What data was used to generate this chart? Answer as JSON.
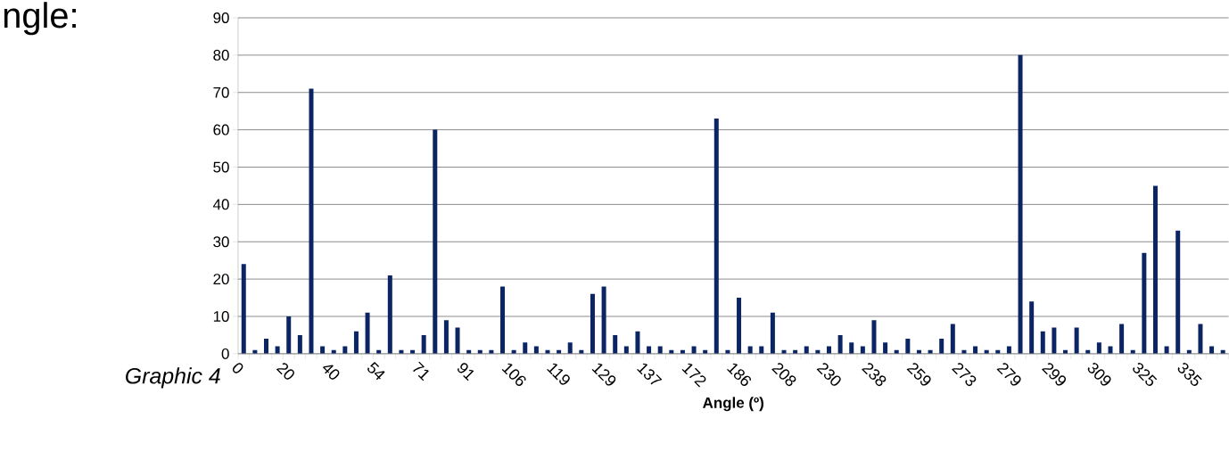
{
  "chart_data": {
    "type": "bar",
    "xlabel": "Angle (º)",
    "annotations": [
      "ngle:",
      "Graphic 4"
    ],
    "categories": [
      "0",
      null,
      null,
      null,
      "20",
      null,
      null,
      null,
      "40",
      null,
      null,
      null,
      "54",
      null,
      null,
      null,
      "71",
      null,
      null,
      null,
      "91",
      null,
      null,
      null,
      "106",
      null,
      null,
      null,
      "119",
      null,
      null,
      null,
      "129",
      null,
      null,
      null,
      "137",
      null,
      null,
      null,
      "172",
      null,
      null,
      null,
      "186",
      null,
      null,
      null,
      "208",
      null,
      null,
      null,
      "230",
      null,
      null,
      null,
      "238",
      null,
      null,
      null,
      "259",
      null,
      null,
      null,
      "273",
      null,
      null,
      null,
      "279",
      null,
      null,
      null,
      "299",
      null,
      null,
      null,
      "309",
      null,
      null,
      null,
      "325",
      null,
      null,
      null,
      "335",
      null,
      null,
      null
    ],
    "values": [
      24,
      1,
      4,
      2,
      10,
      5,
      71,
      2,
      1,
      2,
      6,
      11,
      1,
      21,
      1,
      1,
      5,
      60,
      9,
      7,
      1,
      1,
      1,
      18,
      1,
      3,
      2,
      1,
      1,
      3,
      1,
      16,
      18,
      5,
      2,
      6,
      2,
      2,
      1,
      1,
      2,
      1,
      63,
      1,
      15,
      2,
      2,
      11,
      1,
      1,
      2,
      1,
      2,
      5,
      3,
      2,
      9,
      3,
      1,
      4,
      1,
      1,
      4,
      8,
      1,
      2,
      1,
      1,
      2,
      80,
      14,
      6,
      7,
      1,
      7,
      1,
      3,
      2,
      8,
      1,
      27,
      45,
      2,
      33,
      1,
      8,
      2,
      1
    ],
    "color": "#0b2463",
    "ylim": [
      0,
      90
    ],
    "yticks": [
      0,
      10,
      20,
      30,
      40,
      50,
      60,
      70,
      80,
      90
    ],
    "grid": "y"
  }
}
